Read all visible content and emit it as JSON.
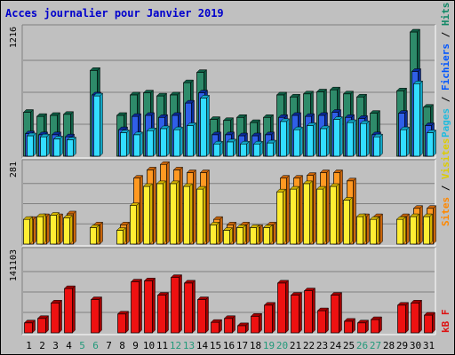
{
  "title": "Acces journalier pour Janvier 2019",
  "colors": {
    "hits_top": "#2e8b6a",
    "hits_side": "#0f5d44",
    "files_top": "#2f5fe8",
    "files_side": "#0a2c9a",
    "pages_top": "#33ddff",
    "pages_side": "#11a7c7",
    "visits_top": "#ff9922",
    "visits_side": "#c9650a",
    "sites_top": "#ffee33",
    "sites_side": "#d4b400",
    "kb_top": "#ee1111",
    "kb_side": "#a00000",
    "label_blue": "#0055ff",
    "label_cyan": "#22bbdd",
    "label_green": "#118866",
    "label_orange": "#ff8800",
    "label_yellow": "#ddcc00",
    "label_red": "#dd1111",
    "weekend_day": "#22997a"
  },
  "chart_data": [
    {
      "type": "bar",
      "id": "top",
      "ymax_label": "1216",
      "ylim": [
        0,
        1216
      ],
      "side_labels": [
        "Pages",
        "Fichiers",
        "Hits"
      ],
      "categories": [
        "1",
        "2",
        "3",
        "4",
        "5",
        "6",
        "7",
        "8",
        "9",
        "10",
        "11",
        "12",
        "13",
        "14",
        "15",
        "16",
        "17",
        "18",
        "19",
        "20",
        "21",
        "22",
        "23",
        "24",
        "25",
        "26",
        "27",
        "28",
        "29",
        "30",
        "31"
      ],
      "series": [
        {
          "key": "hits",
          "values": [
            430,
            390,
            400,
            410,
            0,
            840,
            0,
            400,
            600,
            620,
            590,
            600,
            720,
            820,
            360,
            350,
            380,
            330,
            380,
            600,
            580,
            610,
            630,
            650,
            610,
            580,
            420,
            0,
            640,
            1216,
            480
          ]
        },
        {
          "key": "files",
          "values": [
            220,
            210,
            210,
            190,
            0,
            600,
            0,
            260,
            390,
            400,
            380,
            400,
            520,
            620,
            210,
            210,
            200,
            200,
            210,
            380,
            400,
            390,
            400,
            430,
            380,
            370,
            210,
            0,
            420,
            830,
            300
          ]
        },
        {
          "key": "pages",
          "values": [
            200,
            190,
            170,
            160,
            0,
            590,
            0,
            230,
            210,
            250,
            270,
            260,
            300,
            570,
            120,
            140,
            120,
            120,
            130,
            340,
            260,
            300,
            270,
            360,
            330,
            320,
            190,
            0,
            260,
            710,
            230
          ]
        }
      ]
    },
    {
      "type": "bar",
      "id": "mid",
      "ymax_label": "281",
      "ylim": [
        0,
        281
      ],
      "side_labels": [
        "Sites",
        "Visites"
      ],
      "categories": [
        "1",
        "2",
        "3",
        "4",
        "5",
        "6",
        "7",
        "8",
        "9",
        "10",
        "11",
        "12",
        "13",
        "14",
        "15",
        "16",
        "17",
        "18",
        "19",
        "20",
        "21",
        "22",
        "23",
        "24",
        "25",
        "26",
        "27",
        "28",
        "29",
        "30",
        "31"
      ],
      "series": [
        {
          "key": "visits",
          "values": [
            90,
            100,
            100,
            110,
            0,
            70,
            0,
            70,
            240,
            270,
            290,
            270,
            260,
            260,
            90,
            70,
            70,
            60,
            70,
            240,
            240,
            250,
            260,
            260,
            230,
            100,
            100,
            0,
            100,
            130,
            130
          ]
        },
        {
          "key": "sites",
          "values": [
            90,
            100,
            105,
            95,
            0,
            60,
            0,
            50,
            140,
            210,
            220,
            220,
            210,
            200,
            70,
            50,
            60,
            60,
            60,
            190,
            200,
            220,
            200,
            210,
            160,
            100,
            90,
            0,
            90,
            100,
            100
          ]
        }
      ]
    },
    {
      "type": "bar",
      "id": "bottom",
      "ymax_label": "141103",
      "ylim": [
        0,
        141103
      ],
      "side_labels": [
        "kB F"
      ],
      "categories": [
        "1",
        "2",
        "3",
        "4",
        "5",
        "6",
        "7",
        "8",
        "9",
        "10",
        "11",
        "12",
        "13",
        "14",
        "15",
        "16",
        "17",
        "18",
        "19",
        "20",
        "21",
        "22",
        "23",
        "24",
        "25",
        "26",
        "27",
        "28",
        "29",
        "30",
        "31"
      ],
      "series": [
        {
          "key": "kb",
          "values": [
            18000,
            26000,
            54000,
            80000,
            0,
            60000,
            0,
            34000,
            92000,
            94000,
            68000,
            100000,
            90000,
            60000,
            19000,
            26000,
            13000,
            30000,
            50000,
            90000,
            68000,
            76000,
            40000,
            68000,
            21000,
            18000,
            24000,
            0,
            50000,
            54000,
            32000
          ]
        }
      ]
    }
  ],
  "x_axis": {
    "days": [
      "1",
      "2",
      "3",
      "4",
      "5",
      "6",
      "7",
      "8",
      "9",
      "10",
      "11",
      "12",
      "13",
      "14",
      "15",
      "16",
      "17",
      "18",
      "19",
      "20",
      "21",
      "22",
      "23",
      "24",
      "25",
      "26",
      "27",
      "28",
      "29",
      "30",
      "31"
    ],
    "weekend": [
      5,
      6,
      12,
      13,
      19,
      20,
      26,
      27
    ]
  }
}
